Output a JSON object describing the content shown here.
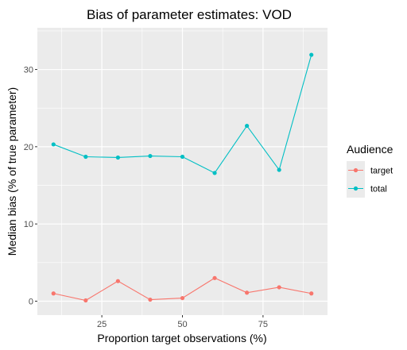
{
  "chart_data": {
    "type": "line",
    "title": "Bias of parameter estimates: VOD",
    "xlabel": "Proportion target observations (%)",
    "ylabel": "Median bias (% of true parameter)",
    "x": [
      10,
      20,
      30,
      40,
      50,
      60,
      70,
      80,
      90
    ],
    "xlim": [
      5,
      95
    ],
    "ylim": [
      -1.8,
      35.4
    ],
    "x_ticks": [
      25,
      50,
      75
    ],
    "x_tick_labels": [
      "25",
      "50",
      "75"
    ],
    "y_ticks": [
      0,
      10,
      20,
      30
    ],
    "y_tick_labels": [
      "0",
      "10",
      "20",
      "30"
    ],
    "grid": true,
    "legend": {
      "title": "Audience",
      "position": "right"
    },
    "series": [
      {
        "name": "target",
        "color": "#F8766D",
        "values": [
          1.0,
          0.1,
          2.6,
          0.2,
          0.4,
          3.0,
          1.1,
          1.8,
          1.0
        ]
      },
      {
        "name": "total",
        "color": "#00BFC4",
        "values": [
          20.3,
          18.7,
          18.6,
          18.8,
          18.7,
          16.6,
          22.7,
          17.0,
          31.9
        ]
      }
    ]
  }
}
